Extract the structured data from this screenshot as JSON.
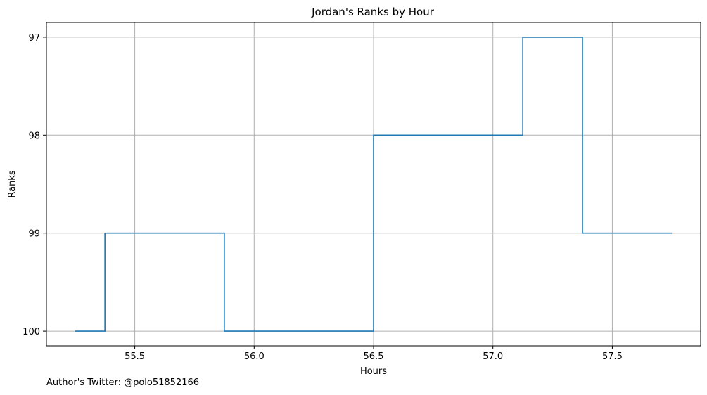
{
  "chart_data": {
    "type": "line",
    "style": "step-post",
    "title": "Jordan's Ranks by Hour",
    "xlabel": "Hours",
    "ylabel": "Ranks",
    "xlim": [
      55.13,
      57.87
    ],
    "ylim": [
      100.15,
      96.85
    ],
    "y_inverted": true,
    "grid": true,
    "xticks": [
      55.5,
      56.0,
      56.5,
      57.0,
      57.5
    ],
    "xtick_labels": [
      "55.5",
      "56.0",
      "56.5",
      "57.0",
      "57.5"
    ],
    "yticks": [
      97,
      98,
      99,
      100
    ],
    "ytick_labels": [
      "97",
      "98",
      "99",
      "100"
    ],
    "series": [
      {
        "color": "#1f77b4",
        "x": [
          55.25,
          55.375,
          55.875,
          56.5,
          57.125,
          57.375,
          57.75
        ],
        "y": [
          100,
          99,
          100,
          98,
          97,
          99,
          99
        ]
      }
    ]
  },
  "footer": {
    "credit": "Author's Twitter: @polo51852166"
  },
  "colors": {
    "line": "#1f77b4",
    "grid": "#b0b0b0",
    "axes": "#000000"
  }
}
